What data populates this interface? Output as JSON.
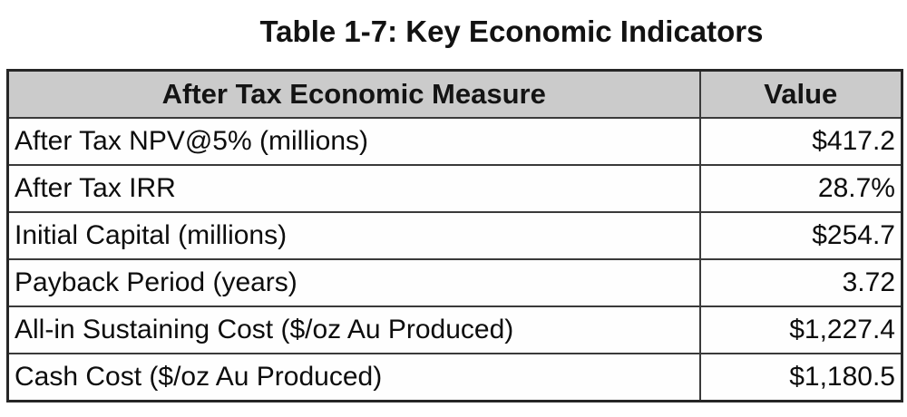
{
  "title": "Table 1-7: Key Economic Indicators",
  "table": {
    "columns": [
      "After Tax Economic Measure",
      "Value"
    ],
    "rows": [
      {
        "measure": "After Tax NPV@5% (millions)",
        "value": "$417.2"
      },
      {
        "measure": "After Tax IRR",
        "value": "28.7%"
      },
      {
        "measure": "Initial Capital (millions)",
        "value": "$254.7"
      },
      {
        "measure": "Payback Period (years)",
        "value": "3.72"
      },
      {
        "measure": "All-in Sustaining Cost ($/oz Au Produced)",
        "value": "$1,227.4"
      },
      {
        "measure": "Cash Cost ($/oz Au Produced)",
        "value": "$1,180.5"
      }
    ]
  },
  "colors": {
    "header_fill": "#cbcbcb",
    "border": "#3a3a3a",
    "outer_border": "#262626",
    "text": "#0d0d0d",
    "background": "#ffffff"
  }
}
